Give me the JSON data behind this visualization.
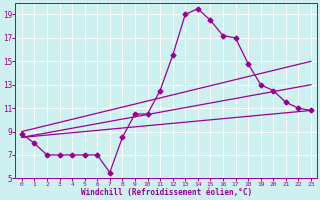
{
  "xlabel": "Windchill (Refroidissement éolien,°C)",
  "background_color": "#cff0f0",
  "line_color": "#990099",
  "grid_color": "#ffffff",
  "xlim": [
    -0.5,
    23.5
  ],
  "ylim": [
    5,
    20
  ],
  "yticks": [
    5,
    7,
    9,
    11,
    13,
    15,
    17,
    19
  ],
  "xticks": [
    0,
    1,
    2,
    3,
    4,
    5,
    6,
    7,
    8,
    9,
    10,
    11,
    12,
    13,
    14,
    15,
    16,
    17,
    18,
    19,
    20,
    21,
    22,
    23
  ],
  "line1_x": [
    0,
    1,
    2,
    3,
    4,
    5,
    6,
    7,
    8,
    9,
    10,
    11,
    12,
    13,
    14,
    15,
    16,
    17,
    18,
    19,
    20,
    21,
    22,
    23
  ],
  "line1_y": [
    8.8,
    8.0,
    7.0,
    7.0,
    7.0,
    7.0,
    7.0,
    5.5,
    8.5,
    10.5,
    10.5,
    12.5,
    15.5,
    19.0,
    19.5,
    18.5,
    17.2,
    17.0,
    14.8,
    13.0,
    12.5,
    11.5,
    11.0,
    10.8
  ],
  "line2_x": [
    0,
    23
  ],
  "line2_y": [
    8.5,
    10.8
  ],
  "line3_x": [
    0,
    23
  ],
  "line3_y": [
    8.5,
    13.0
  ],
  "line4_x": [
    0,
    23
  ],
  "line4_y": [
    9.0,
    15.0
  ],
  "marker": "D",
  "markersize": 2.5,
  "linewidth": 0.9
}
